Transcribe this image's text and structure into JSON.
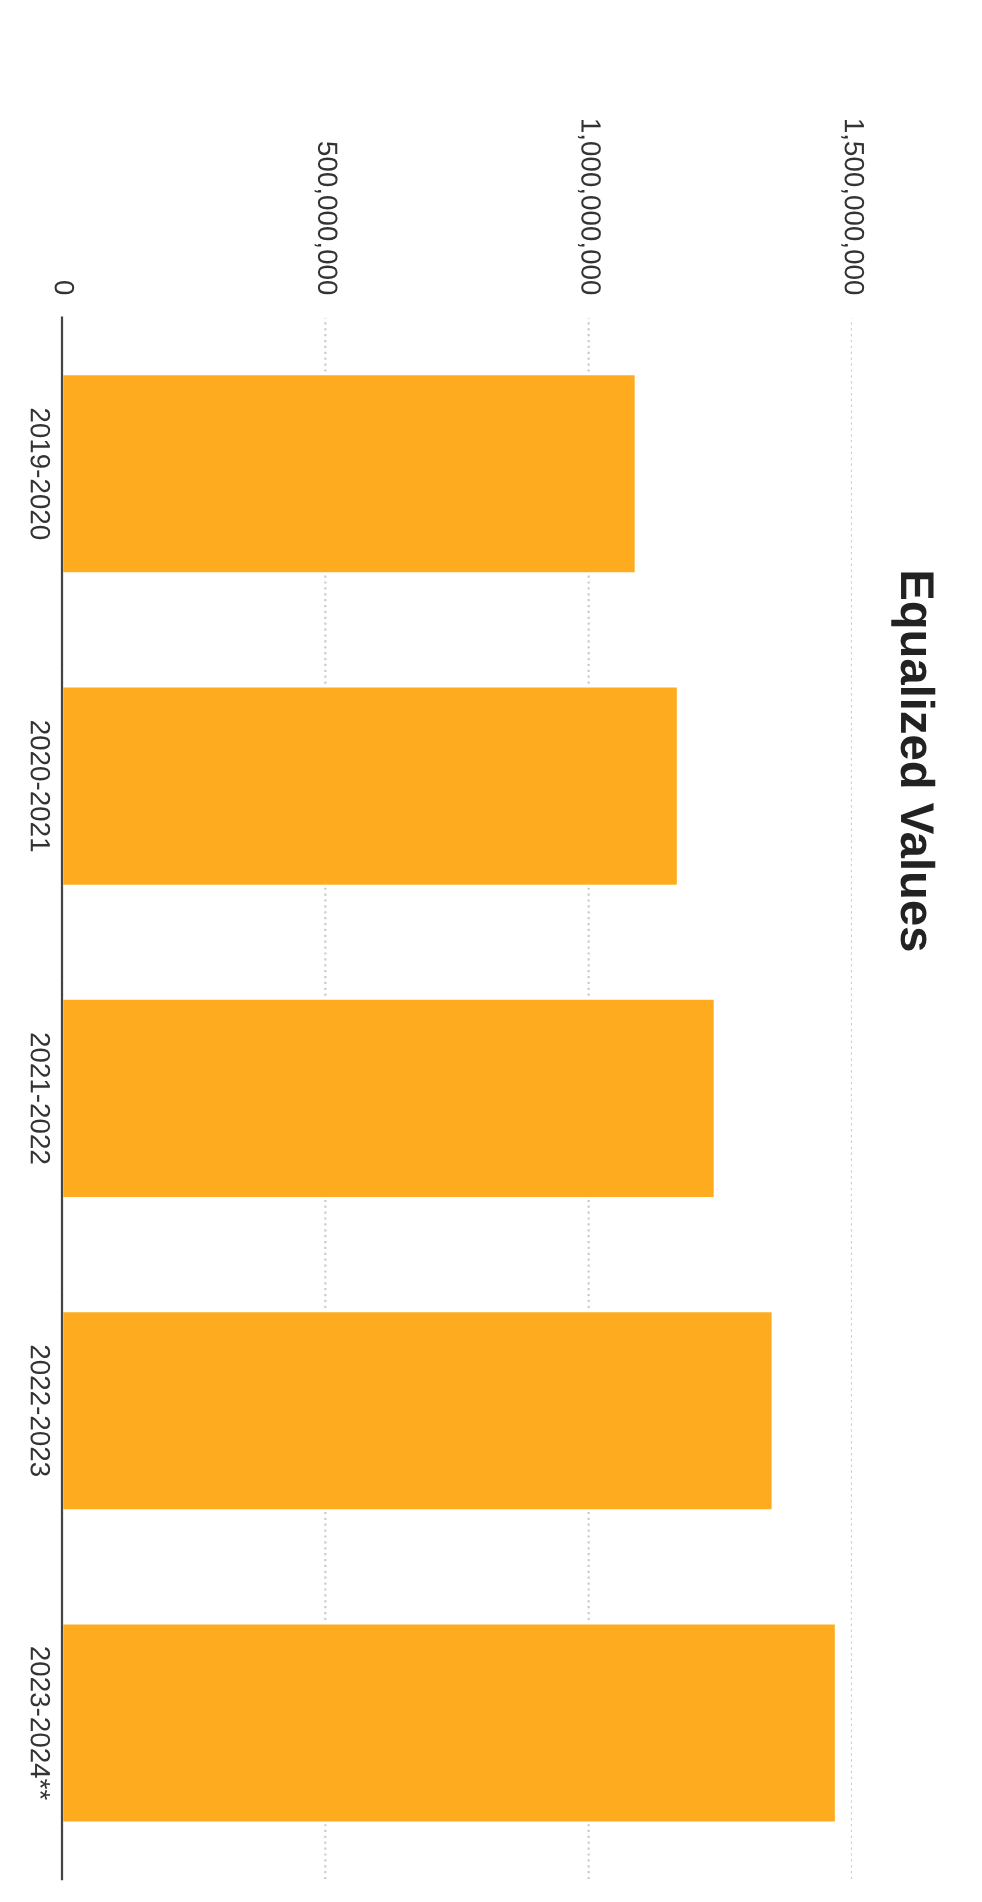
{
  "chart_data": {
    "type": "bar",
    "orientation": "horizontal",
    "title": "Equalized Values",
    "categories": [
      "2019-2020",
      "2020-2021",
      "2021-2022",
      "2022-2023",
      "2023-2024**"
    ],
    "values": [
      1090000000,
      1170000000,
      1240000000,
      1350000000,
      1470000000
    ],
    "color": "#ffab1f",
    "xlim": [
      0,
      1500000000
    ],
    "xticks": [
      {
        "value": 0,
        "label": "0"
      },
      {
        "value": 500000000,
        "label": "500,000,000"
      },
      {
        "value": 1000000000,
        "label": "1,000,000,000"
      },
      {
        "value": 1500000000,
        "label": "1,500,000,000"
      }
    ],
    "grid": "x",
    "legend": false
  }
}
